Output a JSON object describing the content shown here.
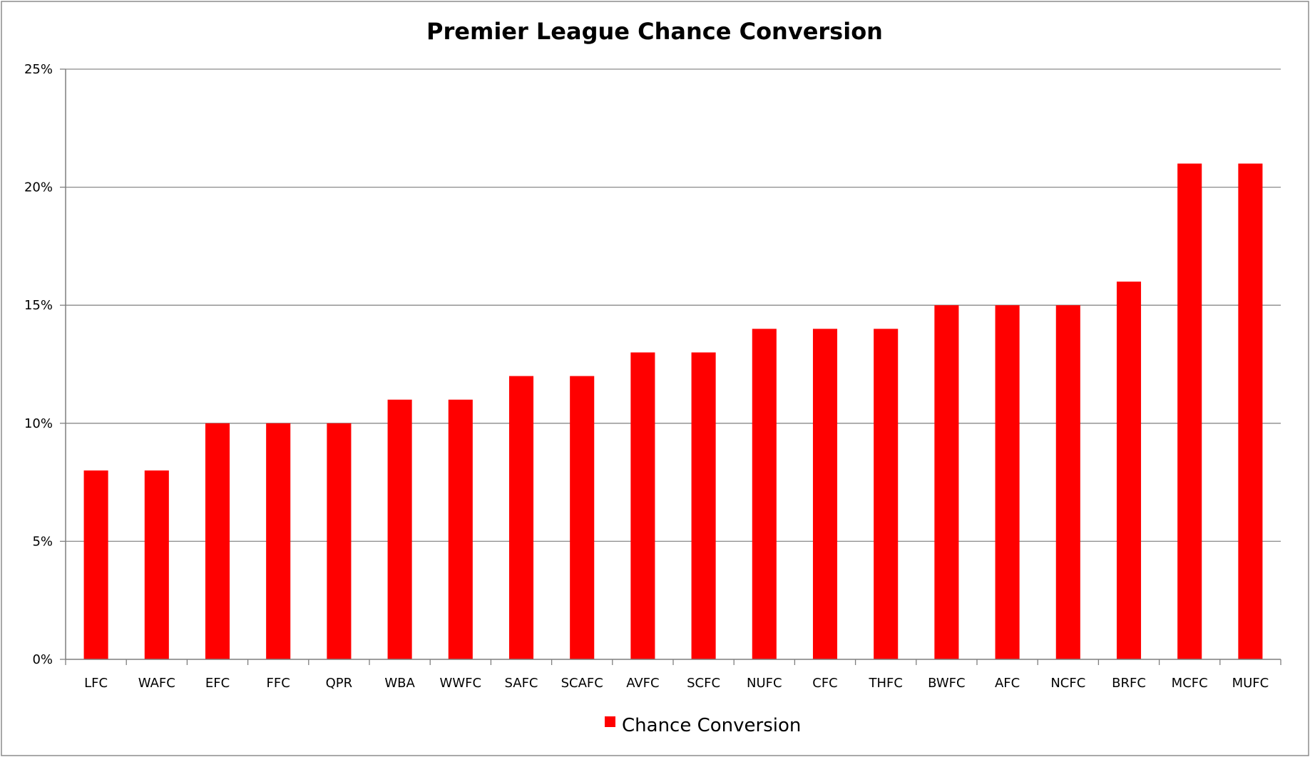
{
  "chart_data": {
    "type": "bar",
    "title": "Premier League Chance Conversion",
    "xlabel": "",
    "ylabel": "",
    "categories": [
      "LFC",
      "WAFC",
      "EFC",
      "FFC",
      "QPR",
      "WBA",
      "WWFC",
      "SAFC",
      "SCAFC",
      "AVFC",
      "SCFC",
      "NUFC",
      "CFC",
      "THFC",
      "BWFC",
      "AFC",
      "NCFC",
      "BRFC",
      "MCFC",
      "MUFC"
    ],
    "series": [
      {
        "name": "Chance Conversion",
        "color": "#ff0000",
        "values": [
          8,
          8,
          10,
          10,
          10,
          11,
          11,
          12,
          12,
          13,
          13,
          14,
          14,
          14,
          15,
          15,
          15,
          16,
          21,
          21
        ]
      }
    ],
    "ylim": [
      0,
      25
    ],
    "yticks": [
      0,
      5,
      10,
      15,
      20,
      25
    ],
    "ytick_labels": [
      "0%",
      "5%",
      "10%",
      "15%",
      "20%",
      "25%"
    ],
    "grid": true,
    "legend": "bottom-center"
  }
}
